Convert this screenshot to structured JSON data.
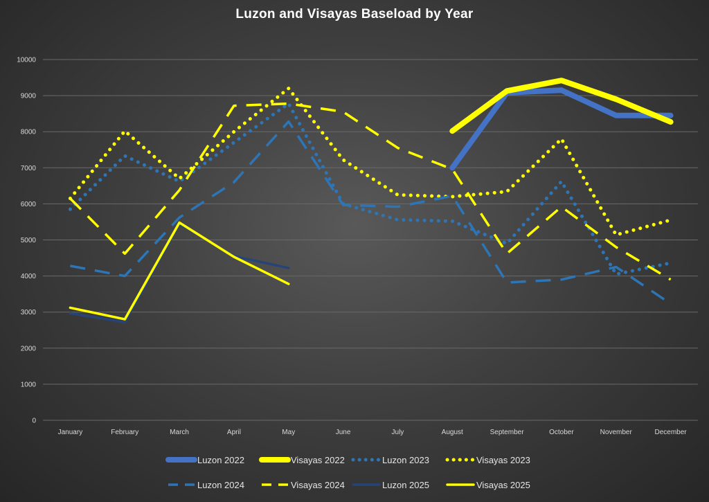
{
  "chart_data": {
    "type": "line",
    "title": "Luzon and Visayas Baseload by Year",
    "xlabel": "",
    "ylabel": "",
    "categories": [
      "January",
      "February",
      "March",
      "April",
      "May",
      "June",
      "July",
      "August",
      "September",
      "October",
      "November",
      "December"
    ],
    "ylim": [
      0,
      10000
    ],
    "yticks": [
      0,
      1000,
      2000,
      3000,
      4000,
      5000,
      6000,
      7000,
      8000,
      9000,
      10000
    ],
    "grid": true,
    "legend_position": "bottom",
    "series": [
      {
        "name": "Luzon 2022",
        "color": "#4472c4",
        "style": "thick-solid",
        "values": [
          null,
          null,
          null,
          null,
          null,
          null,
          null,
          7000,
          9080,
          9150,
          8450,
          8450
        ]
      },
      {
        "name": "Visayas 2022",
        "color": "#ffff00",
        "style": "thick-solid",
        "values": [
          null,
          null,
          null,
          null,
          null,
          null,
          null,
          8020,
          9130,
          9420,
          8900,
          8270
        ]
      },
      {
        "name": "Luzon 2023",
        "color": "#2e75b6",
        "style": "dotted",
        "values": [
          5850,
          7330,
          6620,
          7700,
          8780,
          6000,
          5560,
          5520,
          4900,
          6620,
          4050,
          4360
        ]
      },
      {
        "name": "Visayas 2023",
        "color": "#ffff00",
        "style": "dotted",
        "values": [
          6150,
          8020,
          6700,
          8000,
          9200,
          7220,
          6250,
          6200,
          6340,
          7800,
          5140,
          5550
        ]
      },
      {
        "name": "Luzon 2024",
        "color": "#2e75b6",
        "style": "dashed",
        "values": [
          4280,
          4000,
          5620,
          6600,
          8280,
          5970,
          5920,
          6220,
          3820,
          3900,
          4250,
          3230
        ]
      },
      {
        "name": "Visayas 2024",
        "color": "#ffff00",
        "style": "dashed",
        "values": [
          6150,
          4620,
          6380,
          8720,
          8780,
          8550,
          7550,
          6960,
          4620,
          5920,
          4800,
          3900
        ]
      },
      {
        "name": "Luzon 2025",
        "color": "#264478",
        "style": "solid",
        "values": [
          2970,
          2720,
          5450,
          4550,
          4220,
          null,
          null,
          null,
          null,
          null,
          null,
          null
        ]
      },
      {
        "name": "Visayas 2025",
        "color": "#ffff00",
        "style": "solid",
        "values": [
          3120,
          2800,
          5480,
          4530,
          3780,
          null,
          null,
          null,
          null,
          null,
          null,
          null
        ]
      }
    ]
  }
}
